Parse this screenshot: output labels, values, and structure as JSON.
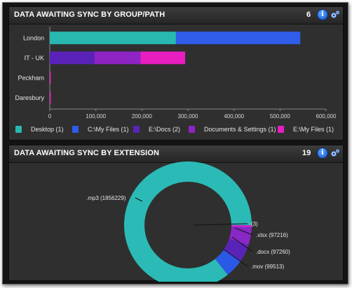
{
  "panel1": {
    "title": "DATA AWAITING SYNC BY GROUP/PATH",
    "count": "6",
    "chart_data": {
      "type": "bar",
      "orientation": "horizontal",
      "stacked": true,
      "categories": [
        "London",
        "IT - UK",
        "Peckham",
        "Daresbury"
      ],
      "series": [
        {
          "name": "Desktop (1)",
          "color": "#28b8b0",
          "values": [
            274000,
            0,
            0,
            0
          ]
        },
        {
          "name": "C:\\My Files (1)",
          "color": "#2f5ce8",
          "values": [
            270000,
            0,
            0,
            0
          ]
        },
        {
          "name": "E:\\Docs (2)",
          "color": "#5a22b8",
          "values": [
            0,
            97000,
            0,
            0
          ]
        },
        {
          "name": "Documents & Settings (1)",
          "color": "#8e24c4",
          "values": [
            0,
            100000,
            0,
            0
          ]
        },
        {
          "name": "E:\\My Files (1)",
          "color": "#e81ec0",
          "values": [
            0,
            97000,
            0,
            0
          ]
        }
      ],
      "xlim": [
        0,
        600000
      ],
      "xticks": [
        "0",
        "100,000",
        "200,000",
        "300,000",
        "400,000",
        "500,000",
        "600,000"
      ],
      "legend_position": "bottom",
      "grid": false
    }
  },
  "panel2": {
    "title": "DATA AWAITING SYNC BY EXTENSION",
    "count": "19",
    "chart_data": {
      "type": "pie",
      "donut": true,
      "slices": [
        {
          "label": ".mp3 (1856229)",
          "value": 1856229,
          "color": "#2bbab5"
        },
        {
          "label": ".mov (99513)",
          "value": 99513,
          "color": "#2a59e6"
        },
        {
          "label": ".docx (97260)",
          "value": 97260,
          "color": "#5a23b8"
        },
        {
          "label": ".xlsx (97216)",
          "value": 97216,
          "color": "#8a28c6"
        },
        {
          "label": "(3)",
          "value": 3,
          "color": "#c02ad0"
        }
      ]
    }
  },
  "icons": {
    "info_glyph": "i",
    "info": "info-icon",
    "settings": "gear-icon"
  }
}
